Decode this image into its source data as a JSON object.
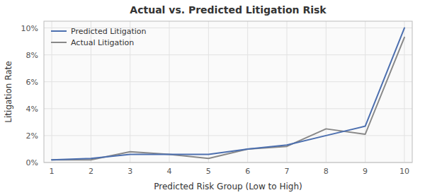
{
  "chart_data": {
    "type": "line",
    "title": "Actual vs. Predicted Litigation Risk",
    "xlabel": "Predicted Risk Group (Low to High)",
    "ylabel": "Litigation Rate",
    "x": [
      1,
      2,
      3,
      4,
      5,
      6,
      7,
      8,
      9,
      10
    ],
    "series": [
      {
        "name": "Predicted Litigation",
        "color": "#4c6faf",
        "values": [
          0.002,
          0.003,
          0.006,
          0.006,
          0.006,
          0.01,
          0.013,
          0.02,
          0.027,
          0.1
        ]
      },
      {
        "name": "Actual Litigation",
        "color": "#888888",
        "values": [
          0.002,
          0.002,
          0.008,
          0.006,
          0.003,
          0.01,
          0.012,
          0.025,
          0.021,
          0.093
        ]
      }
    ],
    "xlim": [
      0.8,
      10.2
    ],
    "ylim": [
      0,
      0.105
    ],
    "xticks": [
      1,
      2,
      3,
      4,
      5,
      6,
      7,
      8,
      9,
      10
    ],
    "yticks": [
      {
        "value": 0.0,
        "label": "0%"
      },
      {
        "value": 0.02,
        "label": "2%"
      },
      {
        "value": 0.04,
        "label": "4%"
      },
      {
        "value": 0.06,
        "label": "6%"
      },
      {
        "value": 0.08,
        "label": "8%"
      },
      {
        "value": 0.1,
        "label": "10%"
      }
    ],
    "grid": true,
    "legend": "upper left"
  }
}
